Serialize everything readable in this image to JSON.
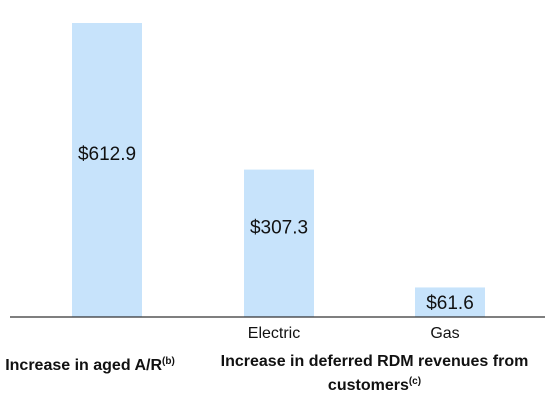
{
  "chart_data": {
    "type": "bar",
    "categories": [
      "",
      "Electric",
      "Gas"
    ],
    "values": [
      612.9,
      307.3,
      61.6
    ],
    "value_labels": [
      "$612.9",
      "$307.3",
      "$61.6"
    ],
    "bar_color": "#c7e3fb",
    "axis_color": "#333333",
    "ylim": [
      0,
      640
    ],
    "grid": false,
    "groups": [
      {
        "label": "Increase in aged A/R",
        "superscript": "(b)"
      },
      {
        "label": "Increase in deferred RDM revenues from customers",
        "superscript": "(c)"
      }
    ]
  }
}
